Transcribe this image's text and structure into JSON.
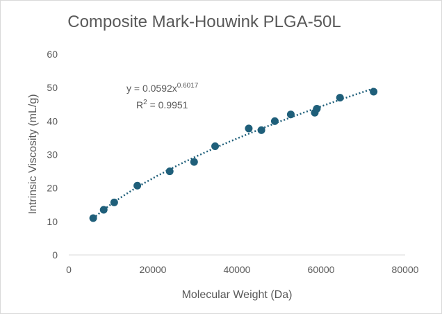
{
  "chart_data": {
    "type": "scatter",
    "title": "Composite Mark-Houwink PLGA-50L",
    "xlabel": "Molecular Weight (Da)",
    "ylabel": "Intrinsic Viscosity (mL/g)",
    "xlim": [
      0,
      80000
    ],
    "ylim": [
      0,
      60
    ],
    "xticks": [
      "0",
      "20000",
      "40000",
      "60000",
      "80000"
    ],
    "yticks": [
      "0",
      "10",
      "20",
      "30",
      "40",
      "50",
      "60"
    ],
    "grid": false,
    "marker_color": "#1f5f7a",
    "trendline": {
      "type": "power",
      "style": "dotted",
      "coefficient": 0.0592,
      "exponent": 0.6017,
      "equation_base": "y = 0.0592x",
      "equation_exp": "0.6017",
      "r2_base": "R",
      "r2_sup": "2",
      "r2_value": " = 0.9951"
    },
    "points": [
      {
        "x": 5800,
        "y": 11.0
      },
      {
        "x": 8300,
        "y": 13.5
      },
      {
        "x": 10800,
        "y": 15.7
      },
      {
        "x": 16300,
        "y": 20.7
      },
      {
        "x": 24000,
        "y": 25.0
      },
      {
        "x": 29800,
        "y": 27.8
      },
      {
        "x": 34800,
        "y": 32.5
      },
      {
        "x": 42800,
        "y": 37.8
      },
      {
        "x": 45800,
        "y": 37.3
      },
      {
        "x": 49000,
        "y": 40.0
      },
      {
        "x": 52800,
        "y": 42.0
      },
      {
        "x": 58500,
        "y": 42.5
      },
      {
        "x": 59000,
        "y": 43.7
      },
      {
        "x": 64500,
        "y": 47.0
      },
      {
        "x": 72500,
        "y": 48.8
      }
    ]
  }
}
